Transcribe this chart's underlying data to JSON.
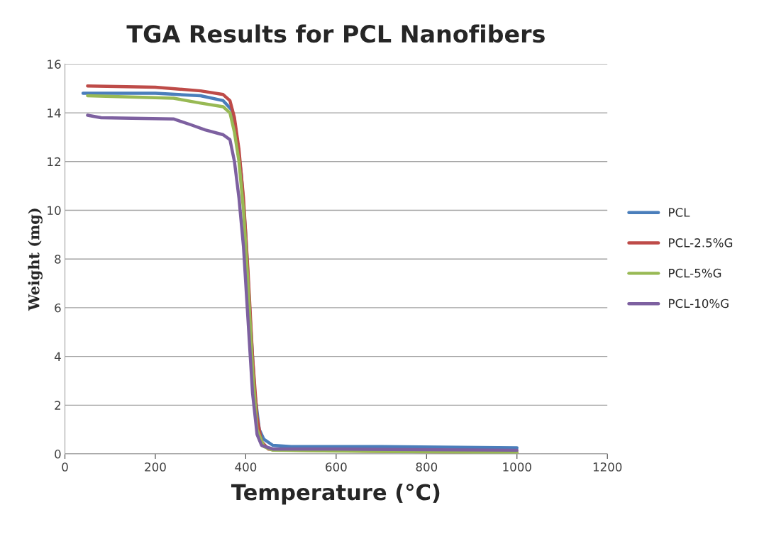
{
  "chart_data": {
    "type": "line",
    "title": "TGA Results for PCL Nanofibers",
    "xlabel": "Temperature (°C)",
    "ylabel": "Weight (mg)",
    "xlim": [
      0,
      1200
    ],
    "xticks": [
      0,
      200,
      400,
      600,
      800,
      1000,
      1200
    ],
    "ylim": [
      0,
      16
    ],
    "yticks": [
      0,
      2,
      4,
      6,
      8,
      10,
      12,
      14,
      16
    ],
    "grid": "y",
    "legend": "right",
    "marker": "none",
    "line_style": "solid",
    "series": [
      {
        "name": "PCL",
        "color": "#4a7ebb",
        "x": [
          40,
          200,
          300,
          350,
          370,
          380,
          390,
          400,
          410,
          420,
          430,
          440,
          460,
          500,
          700,
          1000
        ],
        "values": [
          14.8,
          14.8,
          14.7,
          14.5,
          14.1,
          13.0,
          11.5,
          9.0,
          5.5,
          2.5,
          1.0,
          0.6,
          0.35,
          0.3,
          0.3,
          0.25
        ]
      },
      {
        "name": "PCL-2.5%G",
        "color": "#be4b48",
        "x": [
          50,
          200,
          300,
          350,
          365,
          375,
          385,
          395,
          405,
          415,
          425,
          435,
          450,
          500,
          1000
        ],
        "values": [
          15.1,
          15.05,
          14.9,
          14.75,
          14.5,
          13.8,
          12.5,
          10.5,
          7.5,
          4.0,
          1.5,
          0.5,
          0.2,
          0.15,
          0.05
        ]
      },
      {
        "name": "PCL-5%G",
        "color": "#98b954",
        "x": [
          50,
          240,
          300,
          350,
          365,
          375,
          385,
          395,
          405,
          415,
          425,
          440,
          460,
          600,
          1000
        ],
        "values": [
          14.7,
          14.6,
          14.4,
          14.25,
          14.0,
          13.2,
          12.0,
          10.0,
          7.0,
          3.5,
          1.0,
          0.3,
          0.15,
          0.12,
          0.05
        ]
      },
      {
        "name": "PCL-10%G",
        "color": "#7d60a0",
        "x": [
          50,
          80,
          240,
          280,
          310,
          350,
          365,
          375,
          385,
          395,
          405,
          415,
          425,
          435,
          460,
          600,
          1000
        ],
        "values": [
          13.9,
          13.8,
          13.75,
          13.5,
          13.3,
          13.1,
          12.9,
          12.0,
          10.5,
          8.5,
          5.5,
          2.5,
          0.8,
          0.35,
          0.2,
          0.2,
          0.15
        ]
      }
    ]
  }
}
